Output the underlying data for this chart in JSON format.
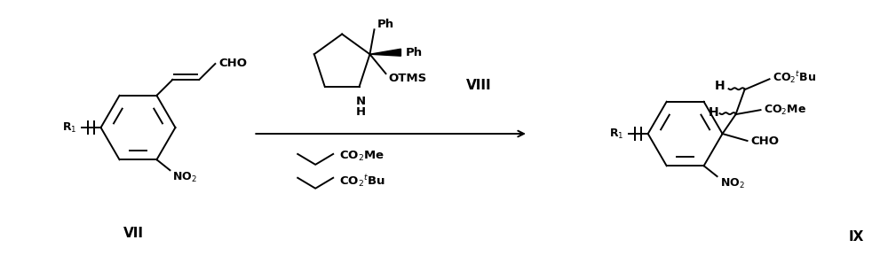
{
  "background_color": "#ffffff",
  "figsize": [
    10.0,
    3.06
  ],
  "dpi": 100,
  "reactant_label": "VII",
  "product_label": "IX",
  "catalyst_label": "VIII"
}
